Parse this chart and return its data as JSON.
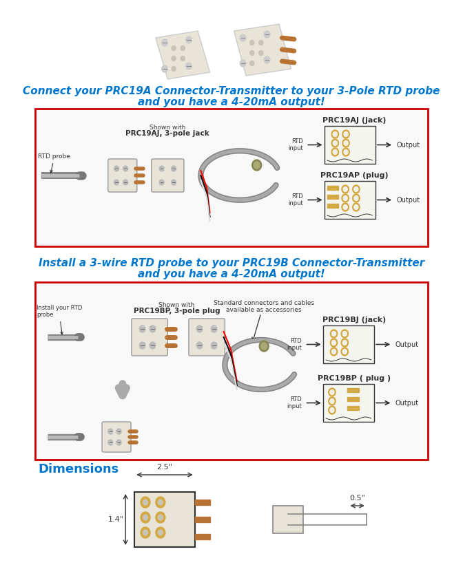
{
  "bg_color": "#ffffff",
  "title_color": "#0077cc",
  "section1_title_line1": "Connect your PRC19A Connector-Transmitter to your 3-Pole RTD probe",
  "section1_title_line2": "and you have a 4-20mA output!",
  "section2_title_line1": "Install a 3-wire RTD probe to your PRC19B Connector-Transmitter",
  "section2_title_line2": "and you have a 4-20mA output!",
  "dimensions_title": "Dimensions",
  "dimensions_title_color": "#0077cc",
  "red_border_color": "#cc0000",
  "arrow_color": "#333333",
  "box1_labels": {
    "left_label1": "RTD probe",
    "shown_with": "Shown with",
    "shown_model": "PRC19AJ, 3-pole jack",
    "right_title1": "PRC19AJ (jack)",
    "rtd_input": "RTD\ninput",
    "output": "Output",
    "right_title2": "PRC19AP (plug)",
    "rtd_input2": "RTD\ninput",
    "output2": "Output"
  },
  "box2_labels": {
    "left_label": "Install your RTD\nprobe",
    "shown_with": "Shown with",
    "shown_model": "PRC19BP, 3-pole plug",
    "accessories": "Standard connectors and cables\navailable as accessories",
    "right_title1": "PRC19BJ (jack)",
    "rtd_input1": "RTD\ninput",
    "output1": "Output",
    "right_title2": "PRC19BP ( plug )",
    "rtd_input2": "RTD\ninput",
    "output2": "Output"
  },
  "dim_label1": "2.5\"",
  "dim_label2": "1.4\"",
  "dim_label3": "0.5\""
}
